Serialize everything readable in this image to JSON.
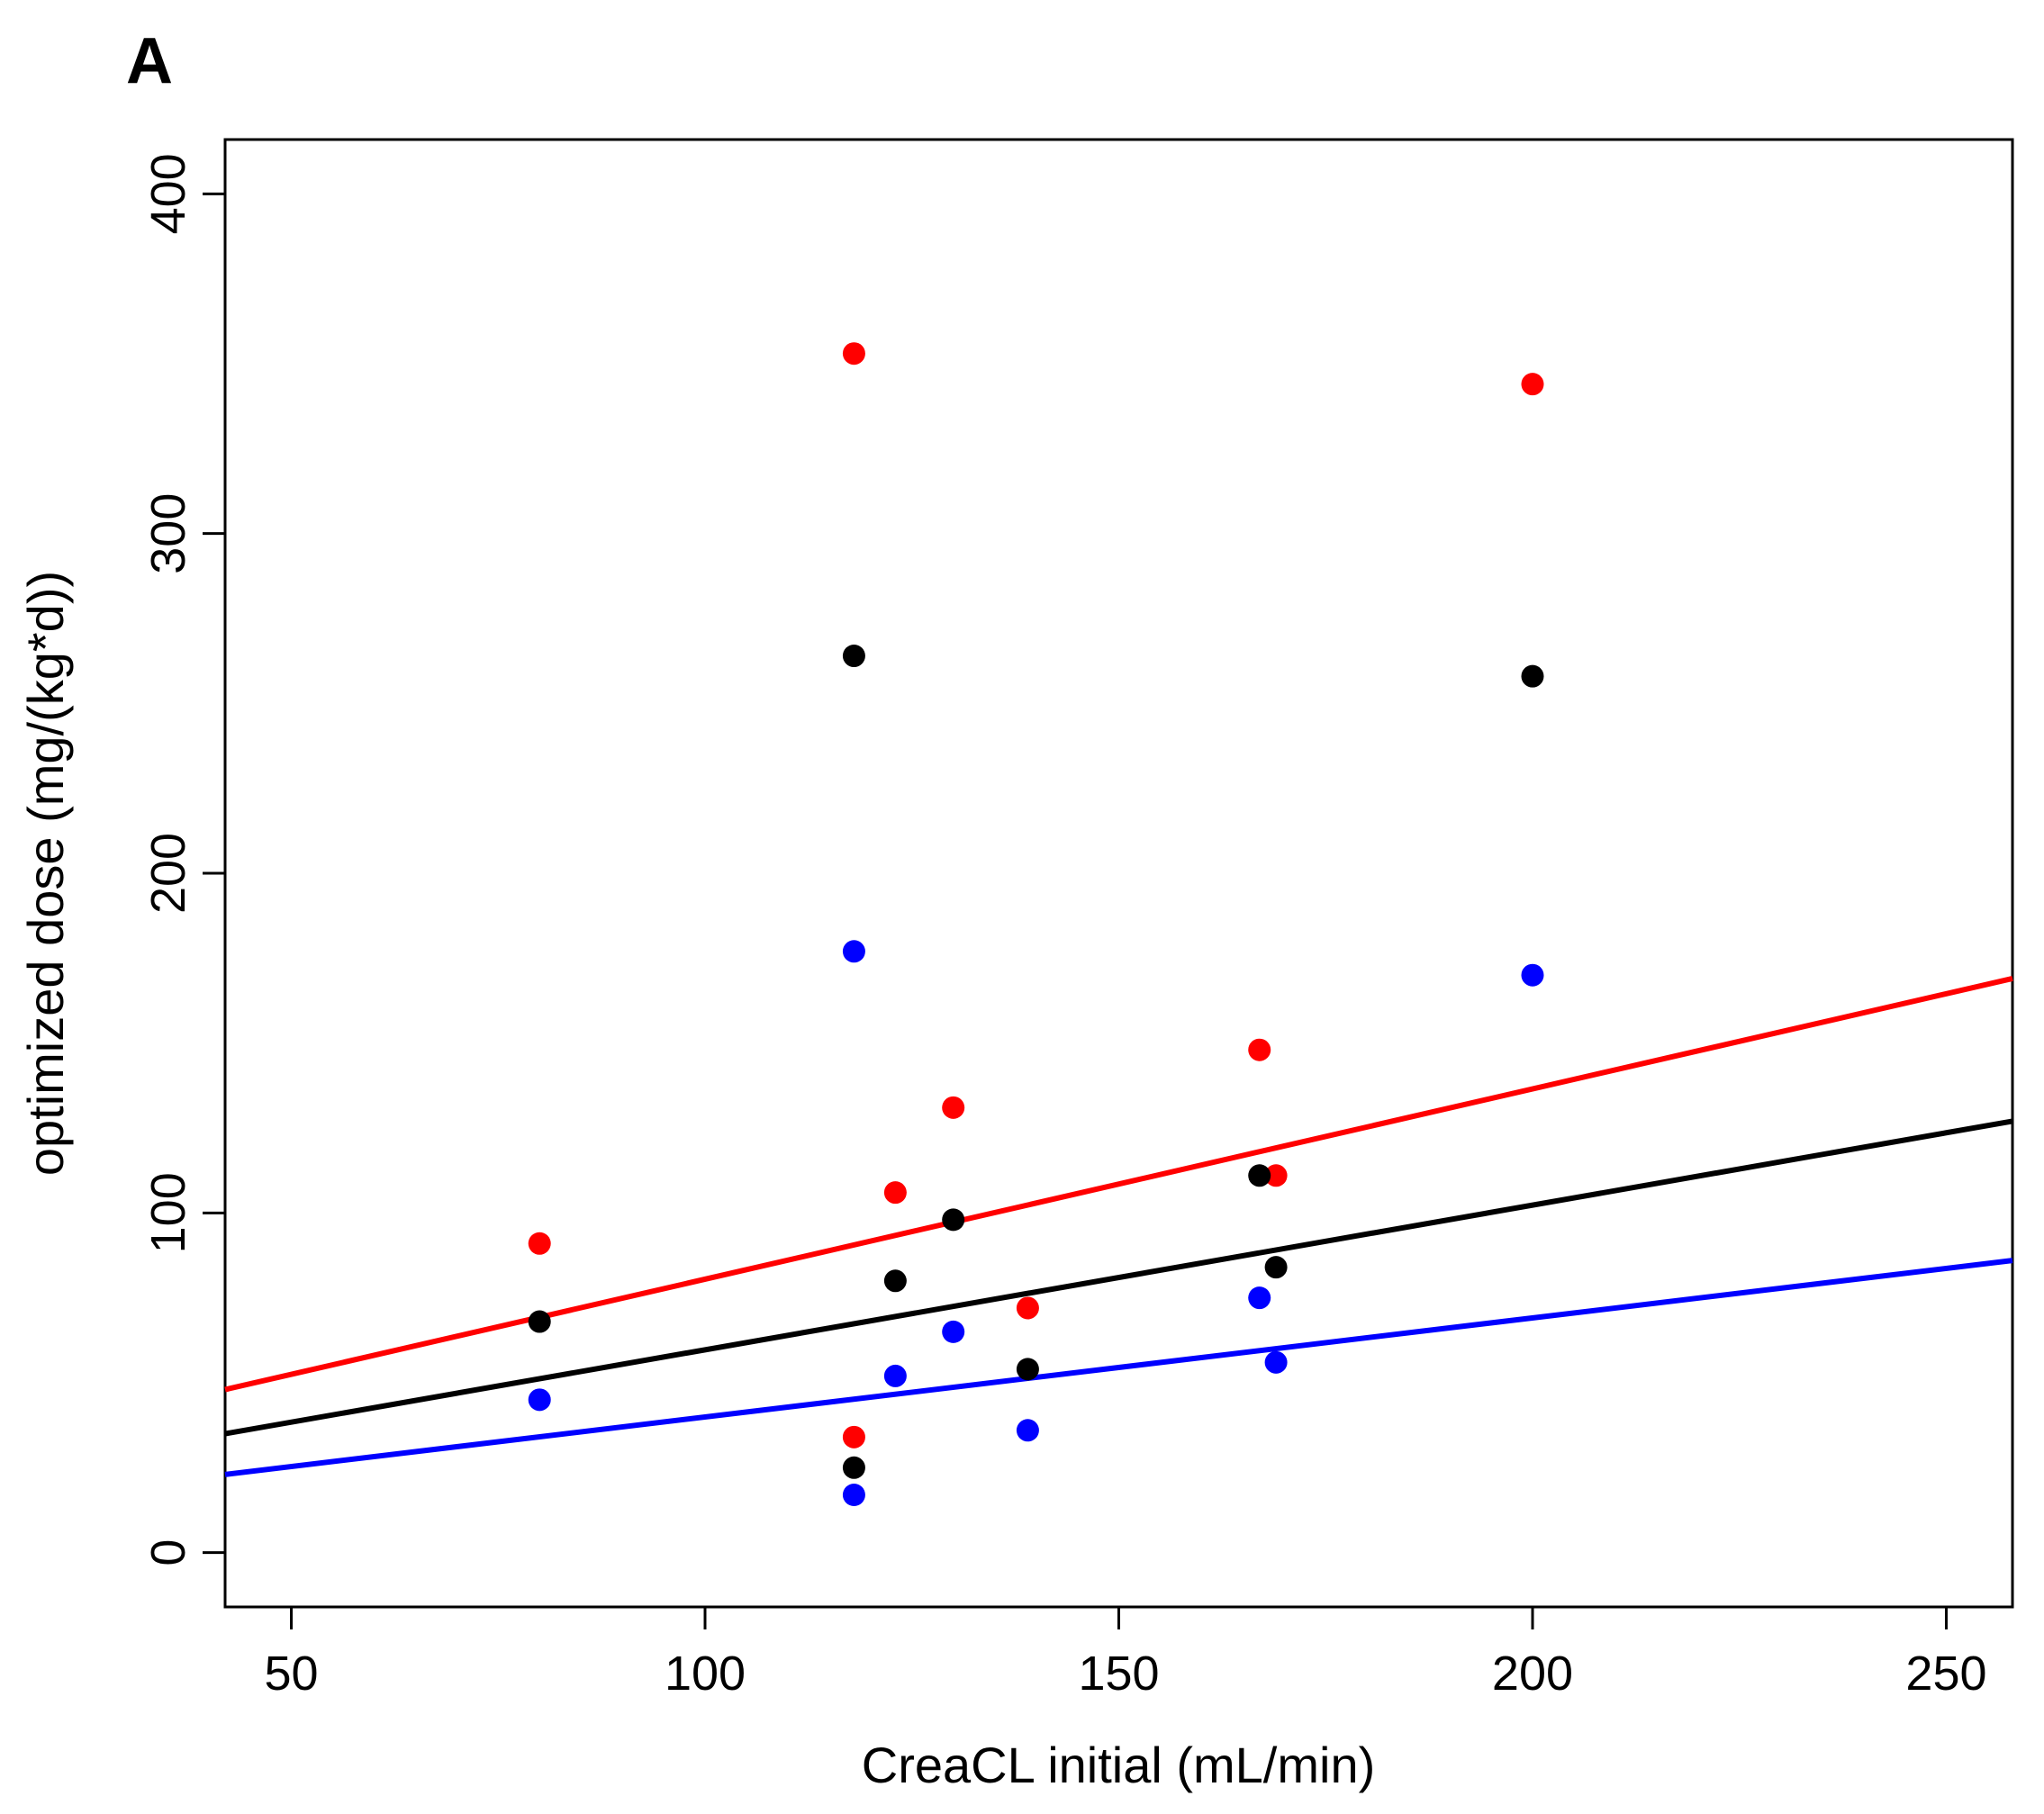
{
  "chart_data": {
    "type": "scatter",
    "panel_label": "A",
    "title": "",
    "xlabel": "CreaCL initial (mL/min)",
    "ylabel": "optimized dose (mg/(kg*d))",
    "xlim": [
      42,
      258
    ],
    "ylim": [
      -16,
      416
    ],
    "x_ticks": [
      50,
      100,
      150,
      200,
      250
    ],
    "y_ticks": [
      0,
      100,
      200,
      300,
      400
    ],
    "grid": false,
    "series": [
      {
        "name": "red",
        "color": "#ff0000",
        "points": [
          [
            80,
            91
          ],
          [
            118,
            353
          ],
          [
            118,
            34
          ],
          [
            123,
            106
          ],
          [
            130,
            131
          ],
          [
            139,
            72
          ],
          [
            167,
            148
          ],
          [
            169,
            111
          ],
          [
            200,
            344
          ]
        ],
        "fit_line": [
          [
            42,
            48
          ],
          [
            258,
            169
          ]
        ]
      },
      {
        "name": "black",
        "color": "#000000",
        "points": [
          [
            80,
            68
          ],
          [
            118,
            264
          ],
          [
            118,
            25
          ],
          [
            123,
            80
          ],
          [
            130,
            98
          ],
          [
            139,
            54
          ],
          [
            167,
            111
          ],
          [
            169,
            84
          ],
          [
            200,
            258
          ]
        ],
        "fit_line": [
          [
            42,
            35
          ],
          [
            258,
            127
          ]
        ]
      },
      {
        "name": "blue",
        "color": "#0000ff",
        "points": [
          [
            80,
            45
          ],
          [
            118,
            177
          ],
          [
            118,
            17
          ],
          [
            123,
            52
          ],
          [
            130,
            65
          ],
          [
            139,
            36
          ],
          [
            167,
            75
          ],
          [
            169,
            56
          ],
          [
            200,
            170
          ]
        ],
        "fit_line": [
          [
            42,
            23
          ],
          [
            258,
            86
          ]
        ]
      }
    ]
  }
}
